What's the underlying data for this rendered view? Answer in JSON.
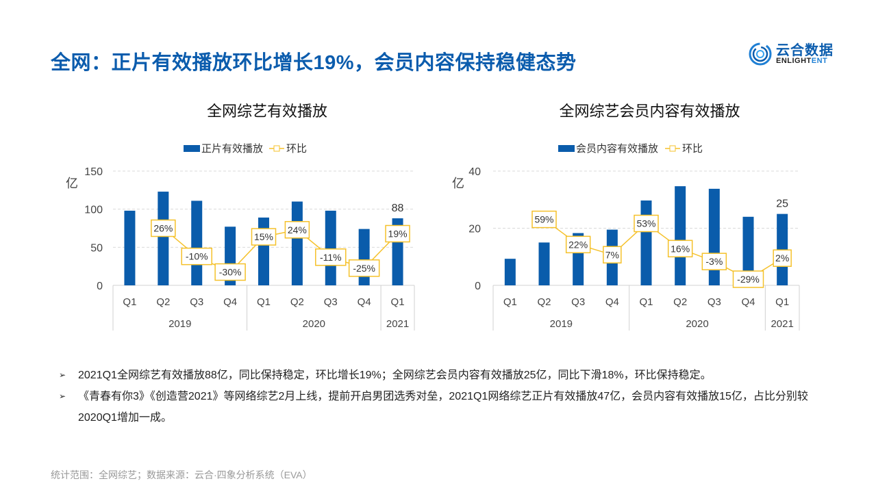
{
  "header": {
    "title": "全网：正片有效播放环比增长19%，会员内容保持稳健态势",
    "logo_cn": "云合数据",
    "logo_en_a": "ENLIGHT",
    "logo_en_b": "ENT"
  },
  "chart_data": [
    {
      "type": "bar",
      "title": "全网综艺有效播放",
      "ylabel": "亿",
      "ylim": [
        0,
        150
      ],
      "yticks": [
        0,
        50,
        100,
        150
      ],
      "grid": true,
      "legend": "top",
      "categories": [
        "Q1",
        "Q2",
        "Q3",
        "Q4",
        "Q1",
        "Q2",
        "Q3",
        "Q4",
        "Q1"
      ],
      "groups": [
        {
          "label": "2019",
          "span": 4
        },
        {
          "label": "2020",
          "span": 4
        },
        {
          "label": "2021",
          "span": 1
        }
      ],
      "series": [
        {
          "name": "正片有效播放",
          "type": "bar",
          "values": [
            98,
            123,
            111,
            77,
            89,
            110,
            98,
            74,
            88
          ]
        },
        {
          "name": "环比",
          "type": "line",
          "axis": "secondary",
          "ylim": [
            -47,
            99
          ],
          "values": [
            null,
            26,
            -10,
            -30,
            15,
            24,
            -11,
            -25,
            19
          ],
          "labels": [
            "",
            "26%",
            "-10%",
            "-30%",
            "15%",
            "24%",
            "-11%",
            "-25%",
            "19%"
          ]
        }
      ],
      "annotation": "88"
    },
    {
      "type": "bar",
      "title": "全网综艺会员内容有效播放",
      "ylabel": "亿",
      "ylim": [
        0,
        40
      ],
      "yticks": [
        0,
        20,
        40
      ],
      "grid": true,
      "legend": "top",
      "categories": [
        "Q1",
        "Q2",
        "Q3",
        "Q4",
        "Q1",
        "Q2",
        "Q3",
        "Q4",
        "Q1"
      ],
      "groups": [
        {
          "label": "2019",
          "span": 4
        },
        {
          "label": "2020",
          "span": 4
        },
        {
          "label": "2021",
          "span": 1
        }
      ],
      "series": [
        {
          "name": "会员内容有效播放",
          "type": "bar",
          "values": [
            9.3,
            15,
            18.3,
            19.5,
            29.7,
            34.7,
            33.8,
            24,
            25
          ]
        },
        {
          "name": "环比",
          "type": "line",
          "axis": "secondary",
          "ylim": [
            -38,
            130
          ],
          "values": [
            null,
            59,
            22,
            7,
            53,
            16,
            -3,
            -29,
            2
          ],
          "labels": [
            "",
            "59%",
            "22%",
            "7%",
            "53%",
            "16%",
            "-3%",
            "-29%",
            "2%"
          ]
        }
      ],
      "annotation": "25"
    }
  ],
  "bullets": [
    "2021Q1全网综艺有效播放88亿，同比保持稳定，环比增长19%；全网综艺会员内容有效播放25亿，同比下滑18%，环比保持稳定。",
    "《青春有你3》《创造营2021》等网络综艺2月上线，提前开启男团选秀对垒，2021Q1网络综艺正片有效播放47亿，会员内容有效播放15亿，占比分别较2020Q1增加一成。"
  ],
  "bullet_marker": "➢",
  "footer": "统计范围：全网综艺；数据来源：云合·四象分析系统（EVA）",
  "colors": {
    "bar": "#0a5cab",
    "line": "#f5c12a",
    "title": "#0b5cad"
  }
}
